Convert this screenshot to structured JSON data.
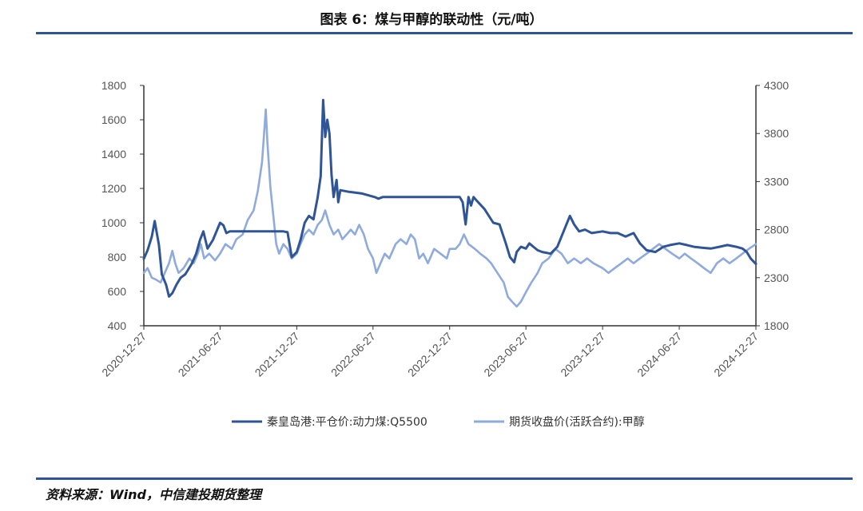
{
  "header": {
    "title": "图表 6：煤与甲醇的联动性（元/吨）"
  },
  "footer": {
    "source": "资料来源：Wind，中信建投期货整理"
  },
  "colors": {
    "rule": "#2f5597",
    "coal": "#2f5597",
    "methanol": "#8faadc",
    "axis": "#333333",
    "tick_text": "#555555"
  },
  "chart_data": {
    "type": "line",
    "title": "图表 6：煤与甲醇的联动性（元/吨）",
    "x_tick_labels": [
      "2020-12-27",
      "2021-06-27",
      "2021-12-27",
      "2022-06-27",
      "2022-12-27",
      "2023-06-27",
      "2023-12-27",
      "2024-06-27",
      "2024-12-27"
    ],
    "xlim": [
      "2020-12-27",
      "2024-12-27"
    ],
    "y_left": {
      "min": 400,
      "max": 1800,
      "step": 200,
      "ticks": [
        400,
        600,
        800,
        1000,
        1200,
        1400,
        1600,
        1800
      ]
    },
    "y_right": {
      "min": 1800,
      "max": 4300,
      "step": 500,
      "ticks": [
        1800,
        2300,
        2800,
        3300,
        3800,
        4300
      ]
    },
    "grid": false,
    "legend_position": "bottom",
    "series": [
      {
        "name": "秦皇岛港:平仓价:动力煤:Q5500",
        "axis": "left",
        "color": "#2f5597",
        "points": [
          [
            "2020-12-27",
            790
          ],
          [
            "2021-01-05",
            840
          ],
          [
            "2021-01-15",
            920
          ],
          [
            "2021-01-22",
            1010
          ],
          [
            "2021-02-01",
            870
          ],
          [
            "2021-02-08",
            700
          ],
          [
            "2021-02-18",
            640
          ],
          [
            "2021-02-25",
            570
          ],
          [
            "2021-03-05",
            590
          ],
          [
            "2021-03-15",
            640
          ],
          [
            "2021-03-25",
            680
          ],
          [
            "2021-04-05",
            700
          ],
          [
            "2021-04-20",
            760
          ],
          [
            "2021-05-01",
            820
          ],
          [
            "2021-05-10",
            900
          ],
          [
            "2021-05-18",
            950
          ],
          [
            "2021-05-28",
            850
          ],
          [
            "2021-06-10",
            900
          ],
          [
            "2021-06-27",
            1000
          ],
          [
            "2021-07-05",
            985
          ],
          [
            "2021-07-12",
            940
          ],
          [
            "2021-07-20",
            950
          ],
          [
            "2021-08-01",
            950
          ],
          [
            "2021-09-01",
            950
          ],
          [
            "2021-10-01",
            950
          ],
          [
            "2021-11-01",
            950
          ],
          [
            "2021-11-25",
            950
          ],
          [
            "2021-12-05",
            945
          ],
          [
            "2021-12-15",
            800
          ],
          [
            "2021-12-27",
            830
          ],
          [
            "2022-01-05",
            900
          ],
          [
            "2022-01-15",
            1000
          ],
          [
            "2022-01-25",
            1040
          ],
          [
            "2022-02-05",
            1020
          ],
          [
            "2022-02-15",
            1150
          ],
          [
            "2022-02-22",
            1270
          ],
          [
            "2022-02-28",
            1715
          ],
          [
            "2022-03-05",
            1500
          ],
          [
            "2022-03-10",
            1600
          ],
          [
            "2022-03-15",
            1520
          ],
          [
            "2022-03-20",
            1280
          ],
          [
            "2022-03-25",
            1150
          ],
          [
            "2022-04-01",
            1250
          ],
          [
            "2022-04-05",
            1120
          ],
          [
            "2022-04-10",
            1190
          ],
          [
            "2022-05-01",
            1180
          ],
          [
            "2022-06-01",
            1170
          ],
          [
            "2022-07-01",
            1150
          ],
          [
            "2022-07-10",
            1140
          ],
          [
            "2022-07-20",
            1150
          ],
          [
            "2022-09-01",
            1150
          ],
          [
            "2022-11-01",
            1150
          ],
          [
            "2022-12-27",
            1150
          ],
          [
            "2023-01-20",
            1150
          ],
          [
            "2023-01-27",
            1120
          ],
          [
            "2023-02-03",
            990
          ],
          [
            "2023-02-10",
            1150
          ],
          [
            "2023-02-16",
            1100
          ],
          [
            "2023-02-22",
            1150
          ],
          [
            "2023-03-01",
            1130
          ],
          [
            "2023-03-20",
            1080
          ],
          [
            "2023-04-10",
            1000
          ],
          [
            "2023-04-25",
            990
          ],
          [
            "2023-05-10",
            880
          ],
          [
            "2023-05-20",
            800
          ],
          [
            "2023-05-30",
            770
          ],
          [
            "2023-06-05",
            830
          ],
          [
            "2023-06-15",
            860
          ],
          [
            "2023-06-27",
            850
          ],
          [
            "2023-07-05",
            880
          ],
          [
            "2023-07-15",
            860
          ],
          [
            "2023-07-25",
            840
          ],
          [
            "2023-08-05",
            830
          ],
          [
            "2023-08-25",
            820
          ],
          [
            "2023-09-10",
            860
          ],
          [
            "2023-09-25",
            950
          ],
          [
            "2023-10-10",
            1040
          ],
          [
            "2023-10-20",
            990
          ],
          [
            "2023-11-01",
            950
          ],
          [
            "2023-11-15",
            960
          ],
          [
            "2023-12-01",
            940
          ],
          [
            "2023-12-27",
            950
          ],
          [
            "2024-01-15",
            940
          ],
          [
            "2024-02-01",
            940
          ],
          [
            "2024-02-20",
            920
          ],
          [
            "2024-03-10",
            940
          ],
          [
            "2024-03-25",
            880
          ],
          [
            "2024-04-10",
            840
          ],
          [
            "2024-05-01",
            830
          ],
          [
            "2024-05-20",
            860
          ],
          [
            "2024-06-05",
            870
          ],
          [
            "2024-06-27",
            880
          ],
          [
            "2024-07-15",
            870
          ],
          [
            "2024-08-01",
            860
          ],
          [
            "2024-08-20",
            855
          ],
          [
            "2024-09-10",
            850
          ],
          [
            "2024-10-01",
            860
          ],
          [
            "2024-10-20",
            870
          ],
          [
            "2024-11-10",
            860
          ],
          [
            "2024-11-25",
            850
          ],
          [
            "2024-12-05",
            830
          ],
          [
            "2024-12-15",
            790
          ],
          [
            "2024-12-27",
            760
          ]
        ]
      },
      {
        "name": "期货收盘价(活跃合约):甲醇",
        "axis": "right",
        "color": "#8faadc",
        "points": [
          [
            "2020-12-27",
            2350
          ],
          [
            "2021-01-05",
            2400
          ],
          [
            "2021-01-15",
            2300
          ],
          [
            "2021-01-25",
            2280
          ],
          [
            "2021-02-05",
            2250
          ],
          [
            "2021-02-15",
            2350
          ],
          [
            "2021-02-25",
            2450
          ],
          [
            "2021-03-05",
            2580
          ],
          [
            "2021-03-12",
            2450
          ],
          [
            "2021-03-20",
            2350
          ],
          [
            "2021-04-01",
            2400
          ],
          [
            "2021-04-15",
            2500
          ],
          [
            "2021-04-25",
            2450
          ],
          [
            "2021-05-05",
            2550
          ],
          [
            "2021-05-12",
            2650
          ],
          [
            "2021-05-20",
            2500
          ],
          [
            "2021-06-01",
            2550
          ],
          [
            "2021-06-15",
            2480
          ],
          [
            "2021-06-27",
            2550
          ],
          [
            "2021-07-10",
            2650
          ],
          [
            "2021-07-25",
            2600
          ],
          [
            "2021-08-05",
            2700
          ],
          [
            "2021-08-20",
            2750
          ],
          [
            "2021-09-01",
            2900
          ],
          [
            "2021-09-15",
            3000
          ],
          [
            "2021-09-25",
            3200
          ],
          [
            "2021-10-05",
            3500
          ],
          [
            "2021-10-10",
            3800
          ],
          [
            "2021-10-14",
            4050
          ],
          [
            "2021-10-18",
            3700
          ],
          [
            "2021-10-25",
            3250
          ],
          [
            "2021-11-01",
            2950
          ],
          [
            "2021-11-08",
            2650
          ],
          [
            "2021-11-15",
            2550
          ],
          [
            "2021-11-25",
            2650
          ],
          [
            "2021-12-05",
            2600
          ],
          [
            "2021-12-15",
            2500
          ],
          [
            "2021-12-27",
            2550
          ],
          [
            "2022-01-05",
            2650
          ],
          [
            "2022-01-15",
            2750
          ],
          [
            "2022-01-25",
            2800
          ],
          [
            "2022-02-05",
            2750
          ],
          [
            "2022-02-15",
            2850
          ],
          [
            "2022-02-25",
            2900
          ],
          [
            "2022-03-05",
            3000
          ],
          [
            "2022-03-15",
            2850
          ],
          [
            "2022-03-25",
            2750
          ],
          [
            "2022-04-05",
            2800
          ],
          [
            "2022-04-15",
            2700
          ],
          [
            "2022-04-25",
            2750
          ],
          [
            "2022-05-05",
            2800
          ],
          [
            "2022-05-15",
            2750
          ],
          [
            "2022-05-25",
            2850
          ],
          [
            "2022-06-05",
            2750
          ],
          [
            "2022-06-15",
            2600
          ],
          [
            "2022-06-27",
            2500
          ],
          [
            "2022-07-05",
            2350
          ],
          [
            "2022-07-15",
            2450
          ],
          [
            "2022-07-25",
            2550
          ],
          [
            "2022-08-05",
            2500
          ],
          [
            "2022-08-20",
            2650
          ],
          [
            "2022-09-01",
            2700
          ],
          [
            "2022-09-15",
            2650
          ],
          [
            "2022-09-25",
            2750
          ],
          [
            "2022-10-05",
            2700
          ],
          [
            "2022-10-15",
            2500
          ],
          [
            "2022-10-25",
            2550
          ],
          [
            "2022-11-05",
            2450
          ],
          [
            "2022-11-20",
            2600
          ],
          [
            "2022-12-05",
            2550
          ],
          [
            "2022-12-20",
            2500
          ],
          [
            "2022-12-27",
            2600
          ],
          [
            "2023-01-10",
            2600
          ],
          [
            "2023-01-20",
            2650
          ],
          [
            "2023-01-30",
            2750
          ],
          [
            "2023-02-10",
            2650
          ],
          [
            "2023-02-25",
            2600
          ],
          [
            "2023-03-10",
            2550
          ],
          [
            "2023-03-25",
            2500
          ],
          [
            "2023-04-05",
            2450
          ],
          [
            "2023-04-20",
            2350
          ],
          [
            "2023-05-05",
            2250
          ],
          [
            "2023-05-15",
            2100
          ],
          [
            "2023-05-25",
            2050
          ],
          [
            "2023-06-05",
            2000
          ],
          [
            "2023-06-15",
            2050
          ],
          [
            "2023-06-27",
            2150
          ],
          [
            "2023-07-10",
            2250
          ],
          [
            "2023-07-25",
            2350
          ],
          [
            "2023-08-05",
            2450
          ],
          [
            "2023-08-20",
            2500
          ],
          [
            "2023-09-05",
            2600
          ],
          [
            "2023-09-20",
            2550
          ],
          [
            "2023-10-05",
            2450
          ],
          [
            "2023-10-20",
            2500
          ],
          [
            "2023-11-05",
            2450
          ],
          [
            "2023-11-20",
            2500
          ],
          [
            "2023-12-05",
            2450
          ],
          [
            "2023-12-27",
            2400
          ],
          [
            "2024-01-10",
            2350
          ],
          [
            "2024-01-25",
            2400
          ],
          [
            "2024-02-10",
            2450
          ],
          [
            "2024-02-25",
            2500
          ],
          [
            "2024-03-10",
            2450
          ],
          [
            "2024-03-25",
            2500
          ],
          [
            "2024-04-10",
            2550
          ],
          [
            "2024-04-25",
            2600
          ],
          [
            "2024-05-10",
            2650
          ],
          [
            "2024-05-25",
            2600
          ],
          [
            "2024-06-10",
            2550
          ],
          [
            "2024-06-27",
            2500
          ],
          [
            "2024-07-10",
            2550
          ],
          [
            "2024-07-25",
            2500
          ],
          [
            "2024-08-10",
            2450
          ],
          [
            "2024-08-25",
            2400
          ],
          [
            "2024-09-10",
            2350
          ],
          [
            "2024-09-25",
            2450
          ],
          [
            "2024-10-10",
            2500
          ],
          [
            "2024-10-25",
            2450
          ],
          [
            "2024-11-10",
            2500
          ],
          [
            "2024-11-25",
            2550
          ],
          [
            "2024-12-10",
            2600
          ],
          [
            "2024-12-27",
            2650
          ]
        ]
      }
    ]
  }
}
